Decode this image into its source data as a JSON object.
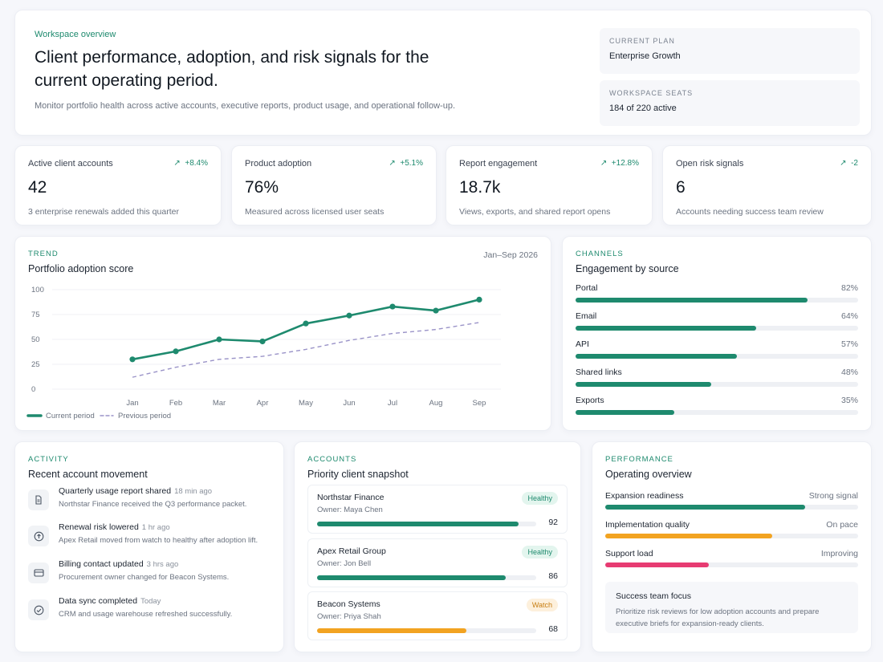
{
  "hero": {
    "eyebrow": "Workspace overview",
    "title": "Client performance, adoption, and risk signals for the current operating period.",
    "subtitle": "Monitor portfolio health across active accounts, executive reports, product usage, and operational follow-up.",
    "plan_label": "CURRENT PLAN",
    "plan_value": "Enterprise Growth",
    "seats_label": "WORKSPACE SEATS",
    "seats_value": "184 of 220 active"
  },
  "kpis": [
    {
      "label": "Active client accounts",
      "delta": "+8.4%",
      "value": "42",
      "sub": "3 enterprise renewals added this quarter"
    },
    {
      "label": "Product adoption",
      "delta": "+5.1%",
      "value": "76%",
      "sub": "Measured across licensed user seats"
    },
    {
      "label": "Report engagement",
      "delta": "+12.8%",
      "value": "18.7k",
      "sub": "Views, exports, and shared report opens"
    },
    {
      "label": "Open risk signals",
      "delta": "-2",
      "value": "6",
      "sub": "Accounts needing success team review"
    }
  ],
  "trend": {
    "kicker": "TREND",
    "title": "Portfolio adoption score",
    "period": "Jan–Sep 2026"
  },
  "chart_data": {
    "type": "line",
    "title": "Portfolio adoption score",
    "x": [
      "Jan",
      "Feb",
      "Mar",
      "Apr",
      "May",
      "Jun",
      "Jul",
      "Aug",
      "Sep"
    ],
    "yticks": [
      "100",
      "75",
      "50",
      "25",
      "0"
    ],
    "ylim": [
      0,
      100
    ],
    "grid": true,
    "legend": "bottom-left",
    "series": [
      {
        "name": "Current period",
        "values": [
          30,
          38,
          50,
          48,
          66,
          74,
          83,
          79,
          90
        ],
        "color": "#1e8a6e",
        "style": "solid"
      },
      {
        "name": "Previous period",
        "values": [
          12,
          22,
          30,
          33,
          40,
          49,
          56,
          60,
          67
        ],
        "color": "#9a93c8",
        "style": "dashed"
      }
    ]
  },
  "channels": {
    "kicker": "CHANNELS",
    "title": "Engagement by source",
    "items": [
      {
        "label": "Portal",
        "pct": "82%",
        "value": 82
      },
      {
        "label": "Email",
        "pct": "64%",
        "value": 64
      },
      {
        "label": "API",
        "pct": "57%",
        "value": 57
      },
      {
        "label": "Shared links",
        "pct": "48%",
        "value": 48
      },
      {
        "label": "Exports",
        "pct": "35%",
        "value": 35
      }
    ]
  },
  "activity": {
    "kicker": "ACTIVITY",
    "title": "Recent account movement",
    "items": [
      {
        "title": "Quarterly usage report shared",
        "time": "18 min ago",
        "desc": "Northstar Finance received the Q3 performance packet.",
        "icon": "document-icon"
      },
      {
        "title": "Renewal risk lowered",
        "time": "1 hr ago",
        "desc": "Apex Retail moved from watch to healthy after adoption lift.",
        "icon": "arrow-up-circle-icon"
      },
      {
        "title": "Billing contact updated",
        "time": "3 hrs ago",
        "desc": "Procurement owner changed for Beacon Systems.",
        "icon": "card-icon"
      },
      {
        "title": "Data sync completed",
        "time": "Today",
        "desc": "CRM and usage warehouse refreshed successfully.",
        "icon": "check-circle-icon"
      }
    ]
  },
  "accounts": {
    "kicker": "ACCOUNTS",
    "title": "Priority client snapshot",
    "items": [
      {
        "name": "Northstar Finance",
        "owner": "Owner: Maya Chen",
        "status": "Healthy",
        "score": "92",
        "value": 92
      },
      {
        "name": "Apex Retail Group",
        "owner": "Owner: Jon Bell",
        "status": "Healthy",
        "score": "86",
        "value": 86
      },
      {
        "name": "Beacon Systems",
        "owner": "Owner: Priya Shah",
        "status": "Watch",
        "score": "68",
        "value": 68
      }
    ]
  },
  "performance": {
    "kicker": "PERFORMANCE",
    "title": "Operating overview",
    "items": [
      {
        "label": "Expansion readiness",
        "status": "Strong signal",
        "value": 79,
        "color": "#1e8a6e"
      },
      {
        "label": "Implementation quality",
        "status": "On pace",
        "value": 66,
        "color": "#f2a321"
      },
      {
        "label": "Support load",
        "status": "Improving",
        "value": 41,
        "color": "#e73b72"
      }
    ],
    "focus_title": "Success team focus",
    "focus_desc": "Prioritize risk reviews for low adoption accounts and prepare executive briefs for expansion-ready clients."
  },
  "colors": {
    "accent": "#1e8a6e",
    "watch": "#f2a321",
    "alert": "#e73b72",
    "healthy_badge_bg": "#e3f5ee",
    "watch_badge_bg": "#fdf0dc"
  }
}
